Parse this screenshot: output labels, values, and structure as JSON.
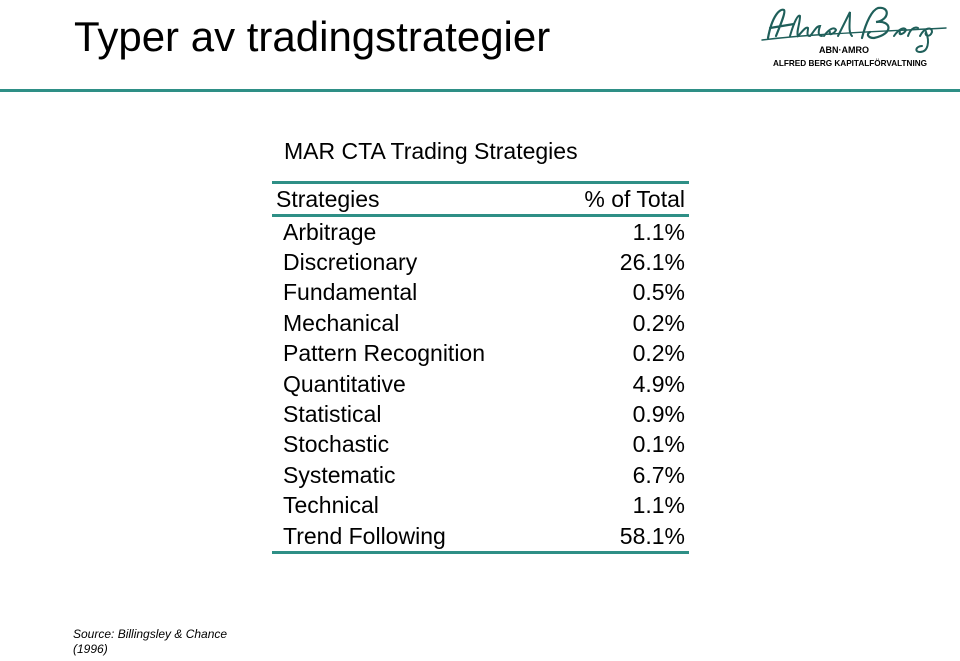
{
  "slide": {
    "title": "Typer av tradingstrategier"
  },
  "logo": {
    "script_text": "Alfred Berg",
    "sub_brand": "ABN·AMRO",
    "tagline": "ALFRED BERG KAPITALFÖRVALTNING",
    "accent_color": "#1f5f5a"
  },
  "table": {
    "title": "MAR CTA Trading Strategies",
    "header": {
      "label": "Strategies",
      "value": "% of Total"
    },
    "rows": [
      {
        "label": "Arbitrage",
        "value": "1.1%"
      },
      {
        "label": "Discretionary",
        "value": "26.1%"
      },
      {
        "label": "Fundamental",
        "value": "0.5%"
      },
      {
        "label": "Mechanical",
        "value": "0.2%"
      },
      {
        "label": "Pattern Recognition",
        "value": "0.2%"
      },
      {
        "label": "Quantitative",
        "value": "4.9%"
      },
      {
        "label": "Statistical",
        "value": "0.9%"
      },
      {
        "label": "Stochastic",
        "value": "0.1%"
      },
      {
        "label": "Systematic",
        "value": "6.7%"
      },
      {
        "label": "Technical",
        "value": "1.1%"
      },
      {
        "label": "Trend Following",
        "value": "58.1%"
      }
    ],
    "rule_color": "#2e8f86"
  },
  "source": {
    "line1": "Source: Billingsley & Chance",
    "line2": "(1996)"
  }
}
